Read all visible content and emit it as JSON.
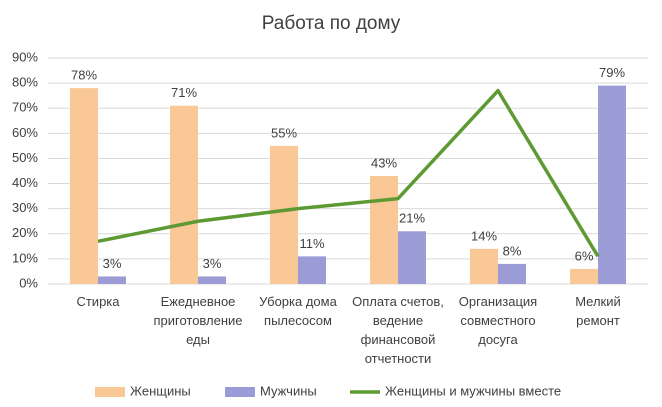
{
  "chart_data": {
    "type": "bar-line",
    "title": "Работа по дому",
    "categories": [
      "Стирка",
      "Ежедневное\nприготовление\nеды",
      "Уборка дома\nпылесосом",
      "Оплата счетов,\nведение\nфинансовой\nотчетности",
      "Организация\nсовместного\nдосуга",
      "Мелкий\nремонт"
    ],
    "series": [
      {
        "name": "Женщины",
        "type": "bar",
        "color": "#fac896",
        "values": [
          78,
          71,
          55,
          43,
          14,
          6
        ],
        "value_labels": [
          "78%",
          "71%",
          "55%",
          "43%",
          "14%",
          "6%"
        ]
      },
      {
        "name": "Мужчины",
        "type": "bar",
        "color": "#9b9bd5",
        "values": [
          3,
          3,
          11,
          21,
          8,
          79
        ],
        "value_labels": [
          "3%",
          "3%",
          "11%",
          "21%",
          "8%",
          "79%"
        ]
      },
      {
        "name": "Женщины и мужчины вместе",
        "type": "line",
        "color": "#5e9a33",
        "values": [
          17,
          25,
          30,
          34,
          77,
          11
        ]
      }
    ],
    "ylim": [
      0,
      90
    ],
    "yticks": [
      {
        "value": 0,
        "label": "0%"
      },
      {
        "value": 10,
        "label": "10%"
      },
      {
        "value": 20,
        "label": "20%"
      },
      {
        "value": 30,
        "label": "30%"
      },
      {
        "value": 40,
        "label": "40%"
      },
      {
        "value": 50,
        "label": "50%"
      },
      {
        "value": 60,
        "label": "60%"
      },
      {
        "value": 70,
        "label": "70%"
      },
      {
        "value": 80,
        "label": "80%"
      },
      {
        "value": 90,
        "label": "90%"
      }
    ],
    "grid": true
  }
}
